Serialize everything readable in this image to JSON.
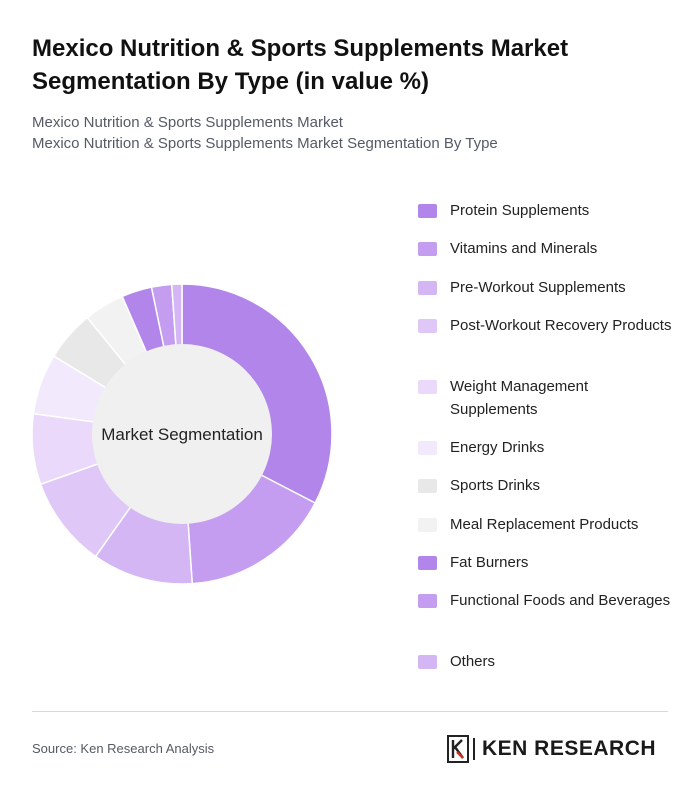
{
  "header": {
    "title": "Mexico Nutrition & Sports Supplements Market Segmentation By Type (in value %)",
    "subtitle_line1": "Mexico Nutrition & Sports Supplements Market",
    "subtitle_line2": "Mexico Nutrition & Sports Supplements Market Segmentation By Type"
  },
  "chart_data": {
    "type": "pie",
    "style": "donut",
    "center_label": "Market Segmentation",
    "legend_position": "right",
    "categories": [
      "Protein Supplements",
      "Vitamins and Minerals",
      "Pre-Workout Supplements",
      "Post-Workout Recovery Products",
      "Weight Management Supplements",
      "Energy Drinks",
      "Sports Drinks",
      "Meal Replacement Products",
      "Fat Burners",
      "Functional Foods and Beverages",
      "Others"
    ],
    "values": [
      30,
      15,
      10,
      9,
      7,
      6,
      5,
      4,
      3,
      2,
      1
    ],
    "colors": [
      "#b185ea",
      "#c49df0",
      "#d4b6f5",
      "#dfc8f7",
      "#ead9fa",
      "#f2eafc",
      "#e8e8e8",
      "#f2f2f2",
      "#b185ea",
      "#c49df0",
      "#d4b6f5"
    ]
  },
  "footer": {
    "source": "Source: Ken Research Analysis",
    "logo_text": "KEN RESEARCH"
  }
}
